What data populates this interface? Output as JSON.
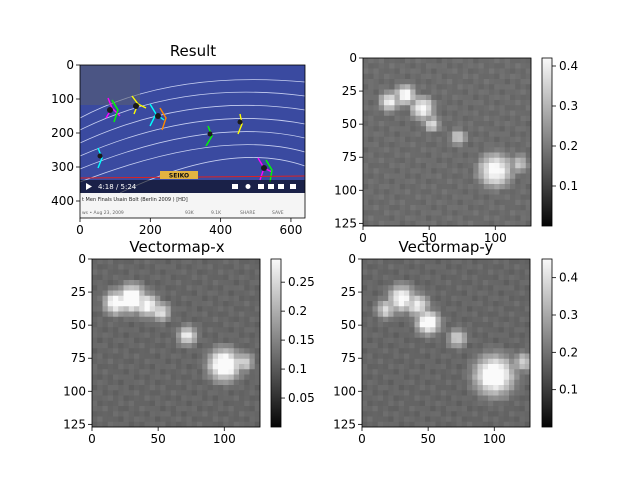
{
  "chart_data": [
    {
      "type": "image",
      "title": "Result",
      "xlim": [
        0,
        640
      ],
      "ylim": [
        450,
        0
      ],
      "xticks": [
        0,
        200,
        400,
        600
      ],
      "yticks": [
        0,
        100,
        200,
        300,
        400
      ],
      "overlay_text": {
        "time": "4:18 / 5:24",
        "sponsor": "SEIKO",
        "video_title": "t Men Finals Usain Bolt (Berlin 2009 ) [HD]",
        "meta": "ws • Aug 23, 2009",
        "likes": "93K",
        "dislikes": "9.1K",
        "share": "SHARE",
        "save": "SAVE"
      }
    },
    {
      "type": "heatmap",
      "title": "",
      "xlim": [
        0,
        127
      ],
      "ylim": [
        127,
        0
      ],
      "xticks": [
        0,
        50,
        100
      ],
      "yticks": [
        0,
        25,
        50,
        75,
        100,
        125
      ],
      "colorbar": {
        "range": [
          0.0,
          0.42
        ],
        "ticks": [
          0.1,
          0.2,
          0.3,
          0.4
        ]
      },
      "blobs": [
        {
          "x": 20,
          "y": 33,
          "r": 6,
          "v": 0.32
        },
        {
          "x": 32,
          "y": 28,
          "r": 6,
          "v": 0.36
        },
        {
          "x": 45,
          "y": 38,
          "r": 7,
          "v": 0.34
        },
        {
          "x": 52,
          "y": 50,
          "r": 5,
          "v": 0.28
        },
        {
          "x": 72,
          "y": 60,
          "r": 5,
          "v": 0.26
        },
        {
          "x": 100,
          "y": 85,
          "r": 10,
          "v": 0.36
        },
        {
          "x": 118,
          "y": 80,
          "r": 6,
          "v": 0.24
        }
      ]
    },
    {
      "type": "heatmap",
      "title": "Vectormap-x",
      "xlim": [
        0,
        127
      ],
      "ylim": [
        127,
        0
      ],
      "xticks": [
        0,
        50,
        100
      ],
      "yticks": [
        0,
        25,
        50,
        75,
        100,
        125
      ],
      "colorbar": {
        "range": [
          0.0,
          0.29
        ],
        "ticks": [
          0.05,
          0.1,
          0.15,
          0.2,
          0.25
        ]
      },
      "blobs": [
        {
          "x": 18,
          "y": 33,
          "r": 6,
          "v": 0.24
        },
        {
          "x": 30,
          "y": 30,
          "r": 7,
          "v": 0.28
        },
        {
          "x": 42,
          "y": 35,
          "r": 6,
          "v": 0.22
        },
        {
          "x": 52,
          "y": 40,
          "r": 5,
          "v": 0.18
        },
        {
          "x": 72,
          "y": 58,
          "r": 5,
          "v": 0.19
        },
        {
          "x": 100,
          "y": 80,
          "r": 8,
          "v": 0.28
        },
        {
          "x": 115,
          "y": 78,
          "r": 5,
          "v": 0.16
        }
      ]
    },
    {
      "type": "heatmap",
      "title": "Vectormap-y",
      "xlim": [
        0,
        127
      ],
      "ylim": [
        127,
        0
      ],
      "xticks": [
        0,
        50,
        100
      ],
      "yticks": [
        0,
        25,
        50,
        75,
        100,
        125
      ],
      "colorbar": {
        "range": [
          0.0,
          0.45
        ],
        "ticks": [
          0.1,
          0.2,
          0.3,
          0.4
        ]
      },
      "blobs": [
        {
          "x": 18,
          "y": 38,
          "r": 5,
          "v": 0.26
        },
        {
          "x": 30,
          "y": 30,
          "r": 7,
          "v": 0.34
        },
        {
          "x": 42,
          "y": 35,
          "r": 6,
          "v": 0.3
        },
        {
          "x": 50,
          "y": 48,
          "r": 6,
          "v": 0.4
        },
        {
          "x": 72,
          "y": 60,
          "r": 5,
          "v": 0.24
        },
        {
          "x": 100,
          "y": 88,
          "r": 10,
          "v": 0.42
        },
        {
          "x": 122,
          "y": 78,
          "r": 5,
          "v": 0.24
        }
      ]
    }
  ]
}
